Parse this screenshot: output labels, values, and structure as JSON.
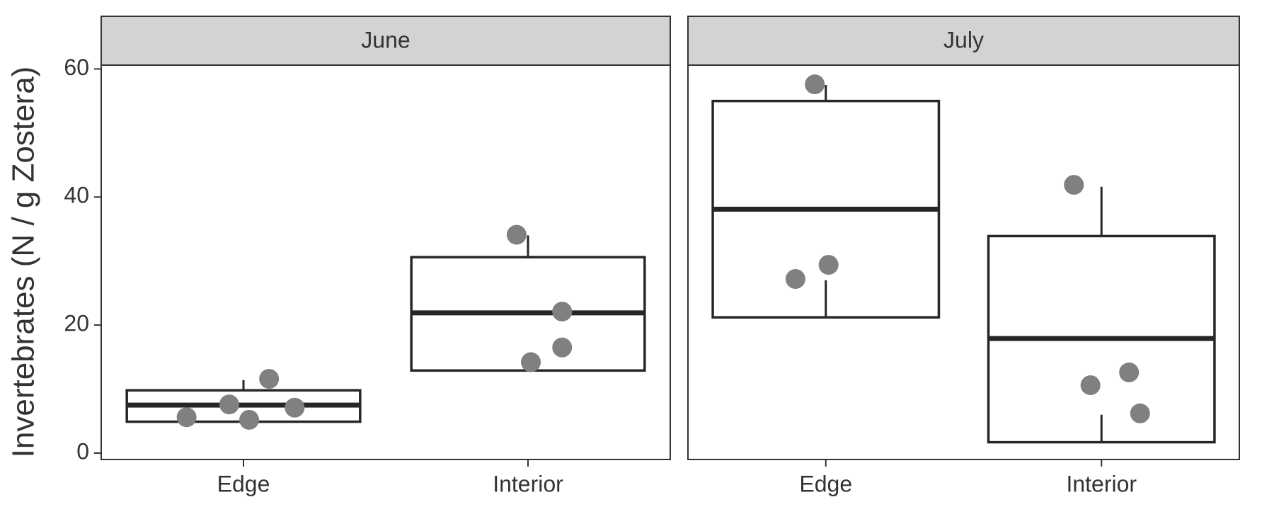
{
  "chart_data": {
    "type": "box",
    "y_label": "Invertebrates (N / g Zostera)",
    "ylim": [
      -1.0,
      60.6
    ],
    "yticks": [
      0,
      20,
      40,
      60
    ],
    "box_color": "#262626",
    "point_color": "#808080",
    "strip_color": "#d3d3d3",
    "panels": [
      {
        "title": "June",
        "categories": [
          "Edge",
          "Interior"
        ],
        "boxes": [
          {
            "q1": 4.9,
            "median": 7.5,
            "q3": 9.8,
            "whiskers": [
              [
                9.8,
                11.4
              ]
            ],
            "points": [
              5.6,
              7.6,
              5.2,
              11.6,
              7.1
            ]
          },
          {
            "q1": 12.9,
            "median": 21.9,
            "q3": 30.6,
            "whiskers": [
              [
                30.6,
                34.0
              ],
              [
                12.9,
                14.0
              ]
            ],
            "points": [
              34.1,
              22.1,
              16.5,
              14.2
            ]
          }
        ]
      },
      {
        "title": "July",
        "categories": [
          "Edge",
          "Interior"
        ],
        "boxes": [
          {
            "q1": 21.2,
            "median": 38.1,
            "q3": 55.0,
            "whiskers": [
              [
                55.0,
                57.5
              ],
              [
                21.2,
                27.0
              ]
            ],
            "points": [
              57.6,
              27.2,
              29.4
            ]
          },
          {
            "q1": 1.7,
            "median": 17.9,
            "q3": 33.9,
            "whiskers": [
              [
                33.9,
                41.6
              ],
              [
                1.7,
                6.0
              ]
            ],
            "points": [
              41.9,
              10.6,
              12.6,
              6.2
            ]
          }
        ]
      }
    ]
  }
}
